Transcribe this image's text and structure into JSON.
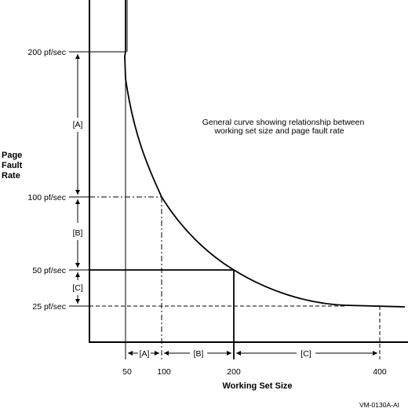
{
  "y_axis": {
    "label_lines": [
      "Page",
      "Fault",
      "Rate"
    ],
    "ticks": [
      "200 pf/sec",
      "100 pf/sec",
      "50 pf/sec",
      "25 pf/sec"
    ]
  },
  "x_axis": {
    "label": "Working Set Size",
    "ticks": [
      "50",
      "100",
      "200",
      "400"
    ]
  },
  "annotation": {
    "line1": "General curve showing relationship between",
    "line2": "working set size and page fault rate"
  },
  "range_labels": {
    "a": "[A]",
    "b": "[B]",
    "c": "[C]"
  },
  "credit": "VM-0130A-AI"
}
